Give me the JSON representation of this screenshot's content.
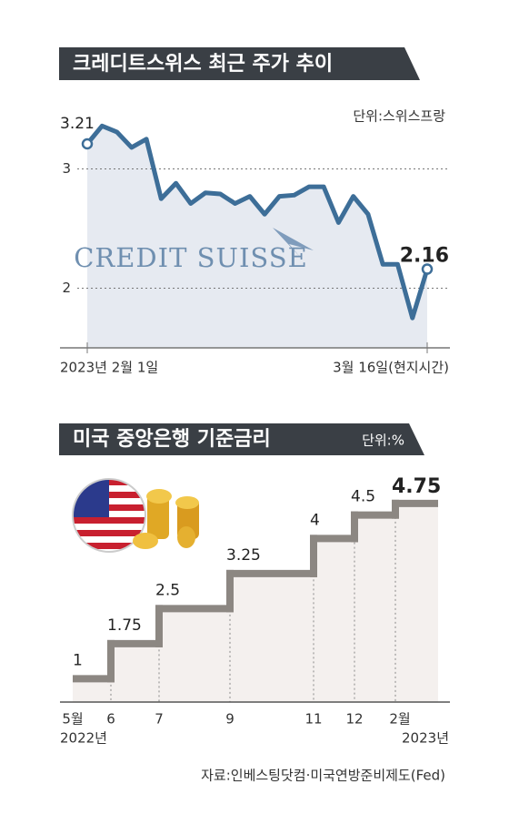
{
  "chart_data": [
    {
      "type": "line",
      "title": "크레디트스위스 최근 주가 추이",
      "unit": "단위:스위스프랑",
      "watermark": "CREDIT SUISSE",
      "start_label": "2023년 2월 1일",
      "end_label": "3월 16일(현지시간)",
      "values": [
        3.21,
        3.36,
        3.31,
        3.18,
        3.25,
        2.75,
        2.88,
        2.71,
        2.8,
        2.79,
        2.71,
        2.77,
        2.62,
        2.77,
        2.78,
        2.85,
        2.85,
        2.55,
        2.77,
        2.62,
        2.2,
        2.2,
        1.75,
        2.16
      ],
      "color": "#3d6e98",
      "ylim": [
        1.5,
        3.5
      ],
      "yticks": [
        2,
        3
      ],
      "grid": true
    },
    {
      "type": "step",
      "title": "미국 중앙은행 기준금리",
      "unit": "단위:%",
      "categories": [
        "5월",
        "6",
        "7",
        "9",
        "11",
        "12",
        "2월"
      ],
      "start_year": "2022년",
      "end_year": "2023년",
      "values": [
        1,
        1.75,
        2.5,
        3.25,
        4,
        4.5,
        4.75
      ],
      "color": "#8c8782",
      "ylim": [
        0.5,
        5
      ]
    }
  ],
  "source": "자료:인베스팅닷컴·미국연방준비제도(Fed)"
}
